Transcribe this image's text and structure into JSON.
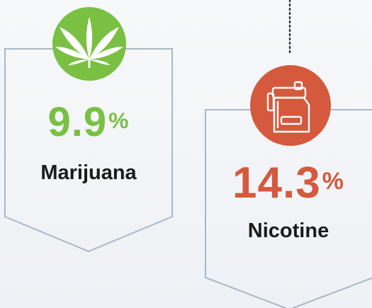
{
  "cards": [
    {
      "id": "marijuana",
      "value": "9.9",
      "unit": "%",
      "label": "Marijuana",
      "color": "#79c043",
      "icon": "cannabis-leaf-icon"
    },
    {
      "id": "nicotine",
      "value": "14.3",
      "unit": "%",
      "label": "Nicotine",
      "color": "#d5593c",
      "icon": "vape-device-icon"
    }
  ],
  "colors": {
    "card_border": "#a9b7c8",
    "connector": "#333333",
    "background": "#f3f5f8",
    "label_text": "#1b1b1b"
  }
}
